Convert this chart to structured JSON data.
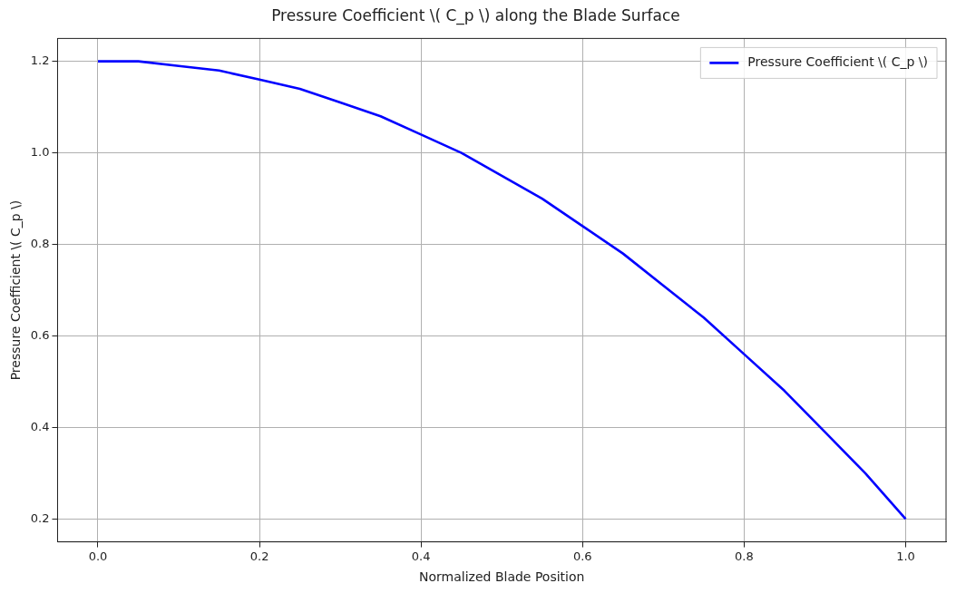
{
  "chart_data": {
    "type": "line",
    "title": "Pressure Coefficient \\( C_p \\) along the Blade Surface",
    "xlabel": "Normalized Blade Position",
    "ylabel": "Pressure Coefficient \\( C_p \\)",
    "x": [
      0,
      0.05,
      0.1,
      0.15,
      0.2,
      0.25,
      0.3,
      0.35,
      0.4,
      0.45,
      0.5,
      0.55,
      0.6,
      0.65,
      0.7,
      0.75,
      0.8,
      0.85,
      0.9,
      0.95,
      1.0
    ],
    "series": [
      {
        "name": "Pressure Coefficient \\( C_p \\)",
        "color": "#0000ff",
        "values": [
          1.2,
          1.2,
          1.19,
          1.18,
          1.16,
          1.14,
          1.11,
          1.08,
          1.04,
          1.0,
          0.95,
          0.9,
          0.84,
          0.78,
          0.71,
          0.64,
          0.56,
          0.48,
          0.39,
          0.3,
          0.2
        ]
      }
    ],
    "xlim": [
      -0.05,
      1.05
    ],
    "xticks": [
      {
        "value": 0,
        "label": "0.0"
      },
      0.2,
      0.4,
      0.6,
      0.8,
      {
        "value": 1,
        "label": "1.0"
      }
    ],
    "ylim": [
      0.15,
      1.25
    ],
    "yticks": [
      0.2,
      0.4,
      0.6,
      0.8,
      {
        "value": 1,
        "label": "1.0"
      },
      1.2
    ],
    "grid": true,
    "legend": "top right",
    "marker": "none",
    "line_style": "solid"
  }
}
